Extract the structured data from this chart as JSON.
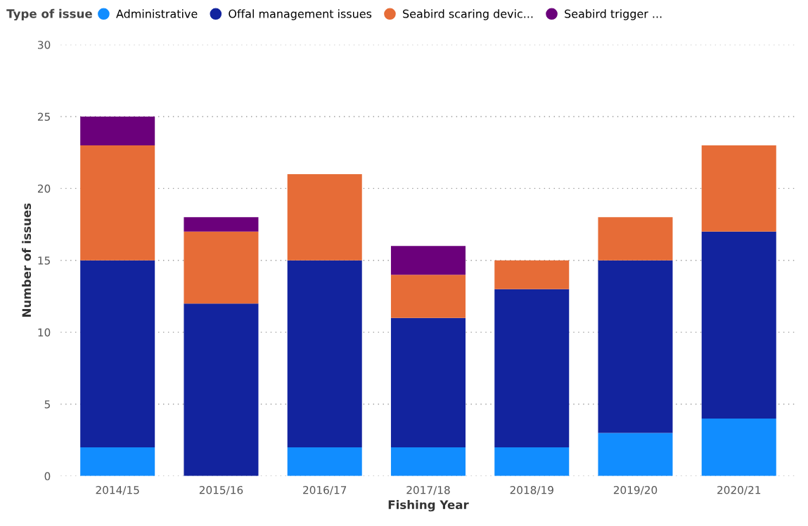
{
  "chart_data": {
    "type": "bar",
    "stacked": true,
    "xlabel": "Fishing Year",
    "ylabel": "Number of issues",
    "legend_title": "Type of issue",
    "categories": [
      "2014/15",
      "2015/16",
      "2016/17",
      "2017/18",
      "2018/19",
      "2019/20",
      "2020/21"
    ],
    "series": [
      {
        "name": "Administrative",
        "color": "#118dff",
        "values": [
          2,
          0,
          2,
          2,
          2,
          3,
          4
        ]
      },
      {
        "name": "Offal management issues",
        "color": "#12239e",
        "values": [
          13,
          12,
          13,
          9,
          11,
          12,
          13
        ]
      },
      {
        "name": "Seabird scaring devic...",
        "color": "#e66c37",
        "values": [
          8,
          5,
          6,
          3,
          2,
          3,
          6
        ]
      },
      {
        "name": "Seabird trigger ...",
        "color": "#6b007b",
        "values": [
          2,
          1,
          0,
          2,
          0,
          0,
          0
        ]
      }
    ],
    "ylim": [
      0,
      30
    ],
    "yticks": [
      0,
      5,
      10,
      15,
      20,
      25,
      30
    ],
    "grid": "y",
    "legend": "top left"
  }
}
